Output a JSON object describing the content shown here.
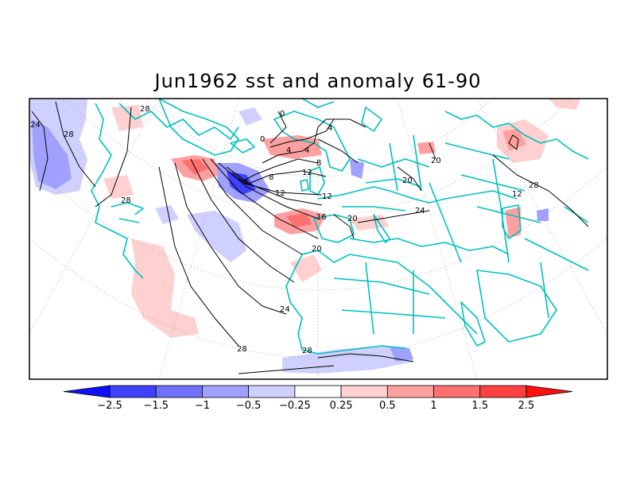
{
  "title": "Jun1962 sst and anomaly 61-90",
  "colorbar": {
    "labels": [
      "-2.5",
      "-1.5",
      "-1",
      "-0.5",
      "-0.25",
      "0.25",
      "0.5",
      "1",
      "1.5",
      "2.5"
    ],
    "colors": [
      "#1010ff",
      "#4040ff",
      "#7070ff",
      "#a0a0ff",
      "#d0d0ff",
      "#ffffff",
      "#ffd0d0",
      "#ffa0a0",
      "#ff7070",
      "#ff4040",
      "#ff1010"
    ]
  },
  "contour_labels": [
    "28",
    "24",
    "28",
    "28",
    "0",
    "0",
    "4",
    "4",
    "4",
    "8",
    "4",
    "8",
    "12",
    "12",
    "12",
    "16",
    "20",
    "20",
    "20",
    "20",
    "24",
    "24",
    "28",
    "28",
    "28",
    "12"
  ],
  "colors": {
    "coastline": "#00c0c0",
    "frame": "#000000",
    "gridline": "#999999"
  }
}
